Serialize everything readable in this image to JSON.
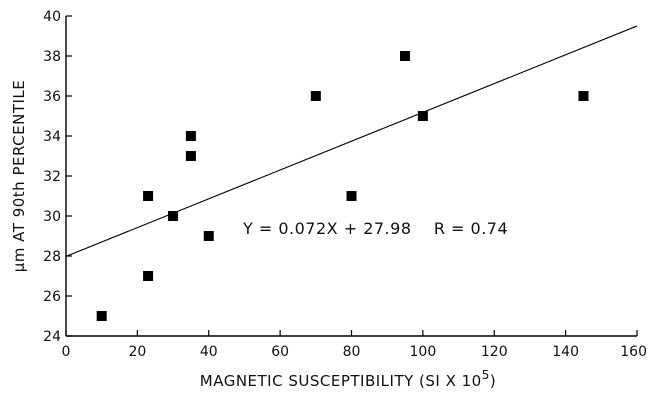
{
  "chart_data": {
    "type": "scatter",
    "title": "",
    "xlabel": "MAGNETIC SUSCEPTIBILITY (SI X 10",
    "xlabel_superscript": "5",
    "xlabel_suffix": ")",
    "ylabel": "µm AT 90th PERCENTILE",
    "xlim": [
      0,
      160
    ],
    "ylim": [
      24,
      40
    ],
    "xticks": [
      0,
      20,
      40,
      60,
      80,
      100,
      120,
      140,
      160
    ],
    "yticks": [
      24,
      26,
      28,
      30,
      32,
      34,
      36,
      38,
      40
    ],
    "xtick_labels": [
      "0",
      "20",
      "40",
      "60",
      "80",
      "100",
      "120",
      "140",
      "160"
    ],
    "ytick_labels": [
      "24",
      "26",
      "28",
      "30",
      "32",
      "34",
      "36",
      "38",
      "40"
    ],
    "grid": false,
    "marker": "square",
    "series": [
      {
        "points": [
          {
            "x": 10,
            "y": 25
          },
          {
            "x": 23,
            "y": 27
          },
          {
            "x": 23,
            "y": 31
          },
          {
            "x": 30,
            "y": 30
          },
          {
            "x": 35,
            "y": 33
          },
          {
            "x": 35,
            "y": 34
          },
          {
            "x": 40,
            "y": 29
          },
          {
            "x": 70,
            "y": 36
          },
          {
            "x": 80,
            "y": 31
          },
          {
            "x": 95,
            "y": 38
          },
          {
            "x": 100,
            "y": 35
          },
          {
            "x": 145,
            "y": 36
          }
        ]
      }
    ],
    "regression": {
      "slope": 0.072,
      "intercept": 27.98,
      "r": 0.74,
      "label": "Y = 0.072X + 27.98    R = 0.74"
    }
  }
}
